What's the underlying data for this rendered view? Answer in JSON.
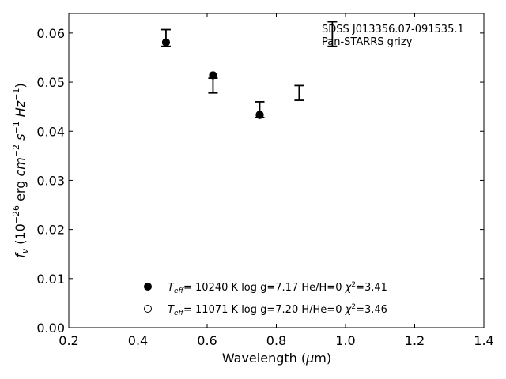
{
  "chart_data": {
    "type": "scatter",
    "xlabel": "Wavelength (μm)",
    "ylabel": "f_ν (10^-26 erg cm^-2 s^-1 Hz^-1)",
    "xlim": [
      0.2,
      1.4
    ],
    "ylim": [
      0.0,
      0.064
    ],
    "xticks": [
      "0.2",
      "0.4",
      "0.6",
      "0.8",
      "1.0",
      "1.2",
      "1.4"
    ],
    "yticks": [
      "0.00",
      "0.01",
      "0.02",
      "0.03",
      "0.04",
      "0.05",
      "0.06"
    ],
    "annotations": [
      "SDSS J013356.07-091535.1",
      "Pan-STARRS grizy"
    ],
    "observed": [
      {
        "x": 0.481,
        "y": 0.059,
        "err": 0.0017
      },
      {
        "x": 0.617,
        "y": 0.0493,
        "err": 0.0015
      },
      {
        "x": 0.752,
        "y": 0.0444,
        "err": 0.0016
      },
      {
        "x": 0.866,
        "y": 0.0478,
        "err": 0.0015
      },
      {
        "x": 0.962,
        "y": 0.0598,
        "err": 0.0025
      }
    ],
    "series": [
      {
        "name": "T_eff= 10240 K  log g=7.17  He/H=0  χ²=3.41",
        "marker": "filled",
        "x": [
          0.481,
          0.617,
          0.752
        ],
        "y": [
          0.0581,
          0.0514,
          0.0433
        ]
      },
      {
        "name": "T_eff= 11071 K  log g=7.20  H/He=0  χ²=3.46",
        "marker": "open",
        "x": [
          0.481,
          0.617,
          0.752
        ],
        "y": [
          0.0581,
          0.0514,
          0.0434
        ]
      }
    ],
    "legend": [
      {
        "marker": "filled",
        "teff": "10240 K",
        "logg": "log g=7.17",
        "comp": "He/H=0",
        "chi": "=3.41"
      },
      {
        "marker": "open",
        "teff": "11071 K",
        "logg": "log g=7.20",
        "comp": "H/He=0",
        "chi": "=3.46"
      }
    ],
    "legend_position": "lower-center",
    "grid": false
  }
}
